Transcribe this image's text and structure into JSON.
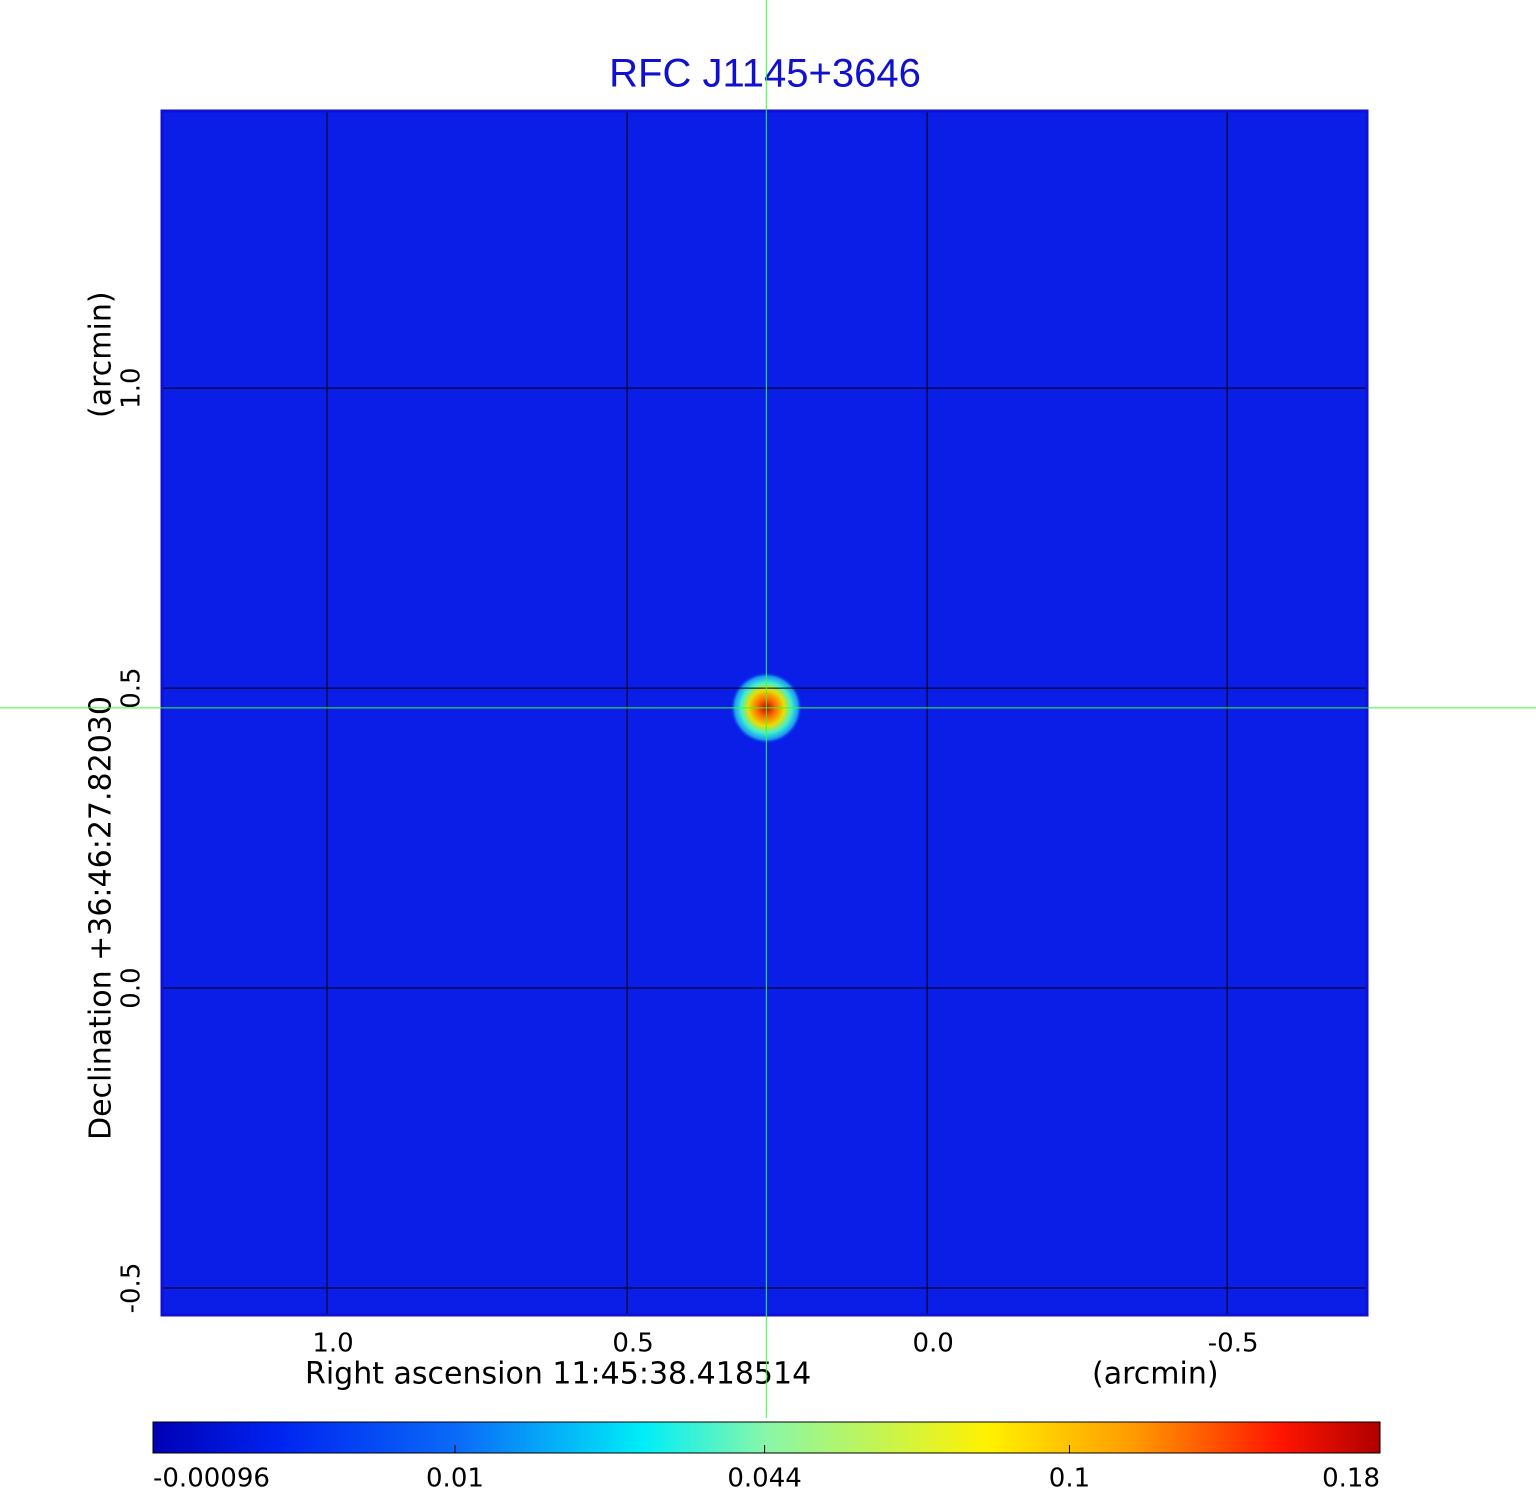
{
  "chart_data": {
    "type": "image",
    "title": "RFC J1145+3646",
    "xlabel": "Right ascension  11:45:38.418514",
    "xunit": "(arcmin)",
    "ylabel": "Declination  +36:46:27.82030",
    "yunit": "(arcmin)",
    "xlim": [
      1.275,
      -0.733
    ],
    "ylim": [
      -0.545,
      1.462
    ],
    "xticks": [
      {
        "value": 1,
        "label": "1.0"
      },
      0.5,
      {
        "value": 0,
        "label": "0.0"
      },
      -0.5
    ],
    "yticks": [
      {
        "value": 1,
        "label": "1.0"
      },
      0.5,
      {
        "value": 0,
        "label": "0.0"
      },
      -0.5
    ],
    "grid": true,
    "source": {
      "x": 0.268,
      "y": 0.467,
      "peak": 0.18
    },
    "colorbar": {
      "scale": "sqrt",
      "clim": [
        -0.00096,
        0.18
      ],
      "ticks": [
        -0.00096,
        0.01,
        0.044,
        0.1,
        0.18
      ]
    }
  }
}
